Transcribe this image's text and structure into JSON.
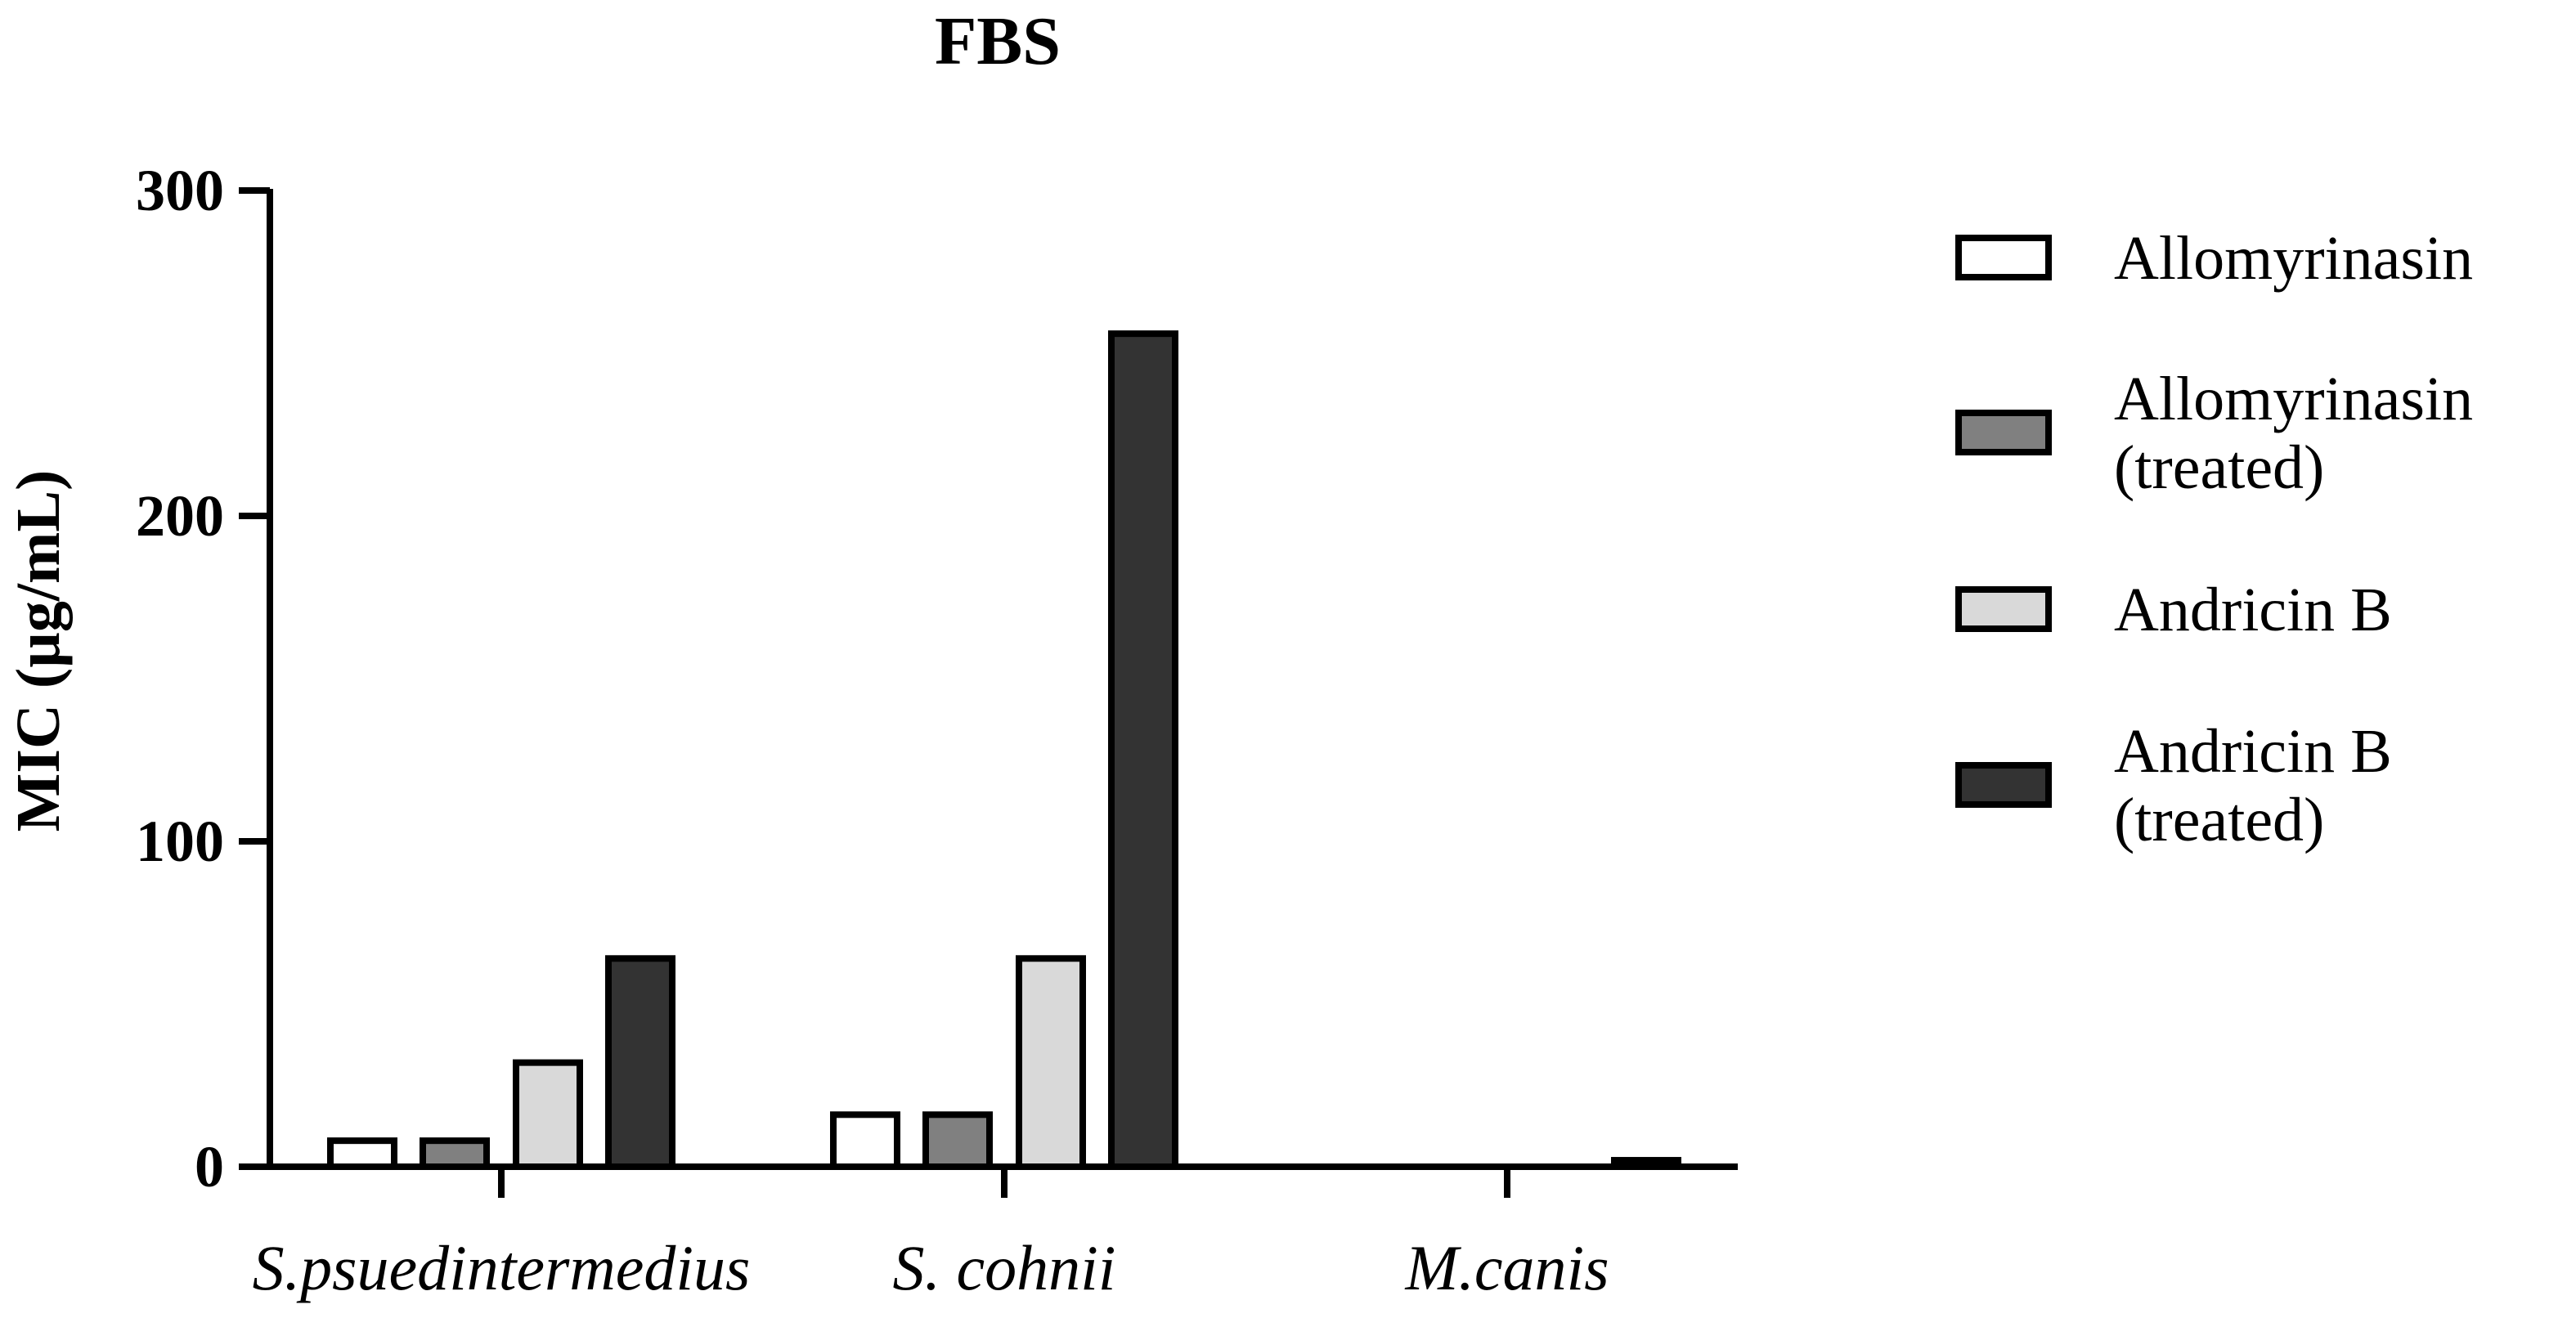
{
  "chart_data": {
    "type": "bar",
    "title": "FBS",
    "xlabel": "",
    "ylabel": "MIC (µg/mL)",
    "ylim": [
      0,
      300
    ],
    "yticks": [
      "0",
      "100",
      "200",
      "300"
    ],
    "grid": false,
    "legend_position": "right",
    "categories": [
      "S.psuedintermedius",
      "S. cohnii",
      "M.canis"
    ],
    "series": [
      {
        "name": [
          "Allomyrinasin"
        ],
        "color": "#ffffff",
        "values": [
          8,
          16,
          0
        ]
      },
      {
        "name": [
          "Allomyrinasin",
          "(treated)"
        ],
        "color": "#808080",
        "values": [
          8,
          16,
          0
        ]
      },
      {
        "name": [
          "Andricin B"
        ],
        "color": "#d9d9d9",
        "values": [
          32,
          64,
          0
        ]
      },
      {
        "name": [
          "Andricin B",
          "(treated)"
        ],
        "color": "#333333",
        "values": [
          64,
          256,
          2
        ]
      }
    ]
  }
}
